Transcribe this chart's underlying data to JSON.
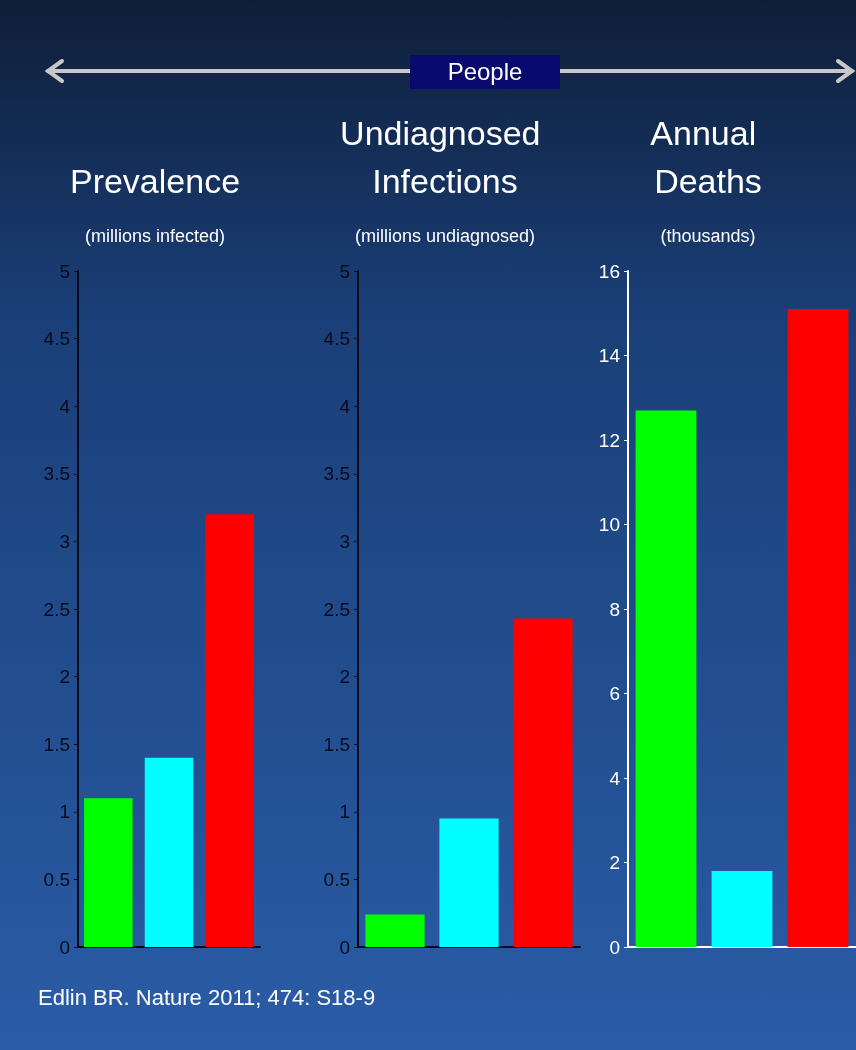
{
  "chart_data": [
    {
      "type": "bar",
      "title": "Prevalence",
      "subtitle": "(millions infected)",
      "categories": [
        null,
        null,
        null
      ],
      "values": [
        1.1,
        1.4,
        3.2
      ],
      "colors": [
        "#00ff00",
        "#00ffff",
        "#ff0000"
      ],
      "ylim": [
        0,
        5
      ],
      "yticks": [
        0,
        0.5,
        1,
        1.5,
        2,
        2.5,
        3,
        3.5,
        4,
        4.5,
        5
      ],
      "annotations": [
        "People"
      ]
    },
    {
      "type": "bar",
      "title": "Undiagnosed Infections",
      "subtitle": "(millions undiagnosed)",
      "categories": [
        null,
        null,
        null
      ],
      "values": [
        0.24,
        0.95,
        2.43
      ],
      "colors": [
        "#00ff00",
        "#00ffff",
        "#ff0000"
      ],
      "ylim": [
        0,
        5
      ],
      "yticks": [
        0,
        0.5,
        1,
        1.5,
        2,
        2.5,
        3,
        3.5,
        4,
        4.5,
        5
      ]
    },
    {
      "type": "bar",
      "title": "Annual Deaths",
      "subtitle": "(thousands)",
      "categories": [
        null,
        null,
        null
      ],
      "values": [
        12.7,
        1.8,
        15.1
      ],
      "colors": [
        "#00ff00",
        "#00ffff",
        "#ff0000"
      ],
      "ylim": [
        0,
        16
      ],
      "yticks": [
        0,
        2,
        4,
        6,
        8,
        10,
        12,
        14,
        16
      ],
      "annotations": [
        "Edlin BR. Nature 2011; 474: S18-9"
      ]
    }
  ]
}
